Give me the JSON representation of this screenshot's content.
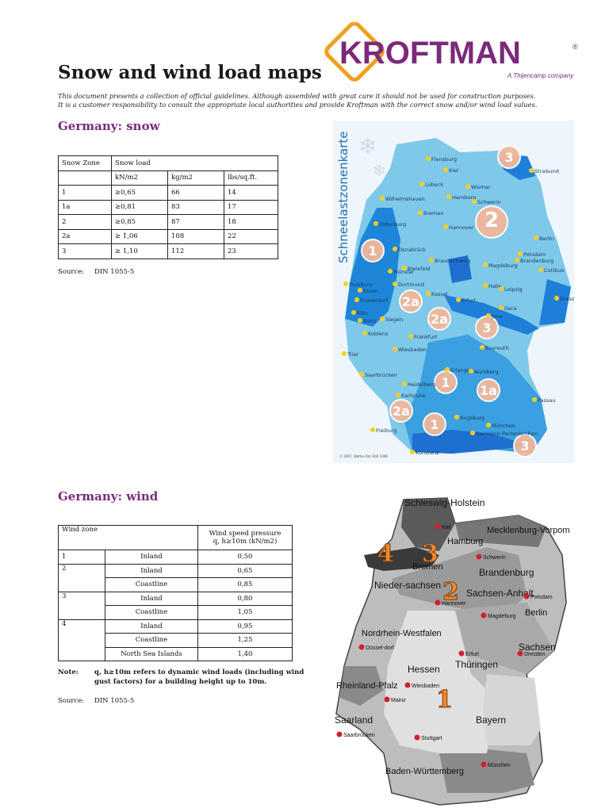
{
  "title": "Snow and wind load maps",
  "disclaimer": {
    "line1": "This document presents a collection of official guidelines.  Although assembled with great care it should not be used for construction purposes.",
    "line2": "It is a customer responsibility to consult the appropriate local authorities and provide Kroftman with the correct snow and/or wind load values."
  },
  "logo": {
    "name": "KROFTMAN",
    "registered": "®",
    "tagline": "A Thijencamp company",
    "color": "#7b2a7b",
    "accent": "#f0a020"
  },
  "snow": {
    "heading": "Germany: snow",
    "table": {
      "h1": [
        "Snow Zone",
        "Snow load"
      ],
      "h2": [
        "kN/m2",
        "kg/m2",
        "lbs/sq.ft."
      ],
      "rows": [
        [
          "1",
          "≥0,65",
          "66",
          "14"
        ],
        [
          "1a",
          "≥0,81",
          "83",
          "17"
        ],
        [
          "2",
          "≥0,85",
          "87",
          "18"
        ],
        [
          "2a",
          "≥ 1,06",
          "108",
          "22"
        ],
        [
          "3",
          "≥ 1,10",
          "112",
          "23"
        ]
      ]
    },
    "source_label": "Source:",
    "source_value": "DIN 1055-5",
    "map": {
      "vertical_title": "Schneelastzonenkarte",
      "zones": [
        "1",
        "1",
        "1",
        "1a",
        "2",
        "2a",
        "2a",
        "2a",
        "3",
        "3",
        "3"
      ],
      "cities": [
        "Flensburg",
        "Kiel",
        "Stralsund",
        "Lübeck",
        "Wismar",
        "Hamburg",
        "Schwerin",
        "Wilhelmshaven",
        "Bremen",
        "Oldenburg",
        "Berlin",
        "Hannover",
        "Potsdam",
        "Brandenburg",
        "Osnabrück",
        "Braunschweig",
        "Magdeburg",
        "Münster",
        "Bielefeld",
        "Cottbus",
        "Dortmund",
        "Halle",
        "Leipzig",
        "Duisburg",
        "Essen",
        "Kassel",
        "Düsseldorf",
        "Erfurt",
        "Dresden",
        "Köln",
        "Bonn",
        "Siegen",
        "Gera",
        "Jena",
        "Koblenz",
        "Frankfurt",
        "Wiesbaden",
        "Bayreuth",
        "Trier",
        "Saarbrücken",
        "Erlangen",
        "Nürnberg",
        "Heidelberg",
        "Karlsruhe",
        "Passau",
        "Augsburg",
        "Freiburg",
        "München",
        "Garmisch-Partenkirchen",
        "Konstanz"
      ],
      "copyright": "© 2007, Wetter-Dat GbR 1998"
    }
  },
  "wind": {
    "heading": "Germany: wind",
    "table": {
      "header_zone": "Wind zone",
      "header_pressure_1": "Wind speed pressure",
      "header_pressure_2": "q, h≥10m (kN/m2)",
      "rows": [
        {
          "zone": "1",
          "location": "Inland",
          "value": "0,50"
        },
        {
          "zone": "2",
          "location": "Inland",
          "value": "0,65"
        },
        {
          "zone": "",
          "location": "Coastline",
          "value": "0,85"
        },
        {
          "zone": "3",
          "location": "Inland",
          "value": "0,80"
        },
        {
          "zone": "",
          "location": "Coastline",
          "value": "1,05"
        },
        {
          "zone": "4",
          "location": "Inland",
          "value": "0,95"
        },
        {
          "zone": "",
          "location": "Coastline",
          "value": "1,25"
        },
        {
          "zone": "",
          "location": "North Sea Islands",
          "value": "1,40"
        }
      ]
    },
    "note_label": "Note:",
    "note_text": "q, h≥10m refers to dynamic wind loads (including wind gust factors) for a building height up to  10m.",
    "source_label": "Source:",
    "source_value": "DIN 1055-5",
    "map": {
      "zones": [
        "4",
        "3",
        "2",
        "1"
      ],
      "states": [
        "Schleswig-Holstein",
        "Mecklenburg-Vorpommern",
        "Hamburg",
        "Bremen",
        "Brandenburg",
        "Nieder-sachsen",
        "Sachsen-Anhalt",
        "Berlin",
        "Nordrhein-Westfalen",
        "Hessen",
        "Thüringen",
        "Sachsen",
        "Rheinland-Pfalz",
        "Saarland",
        "Bayern",
        "Baden-Württemberg"
      ],
      "cities": [
        "Kiel",
        "Schwerin",
        "Hannover",
        "Potsdam",
        "Magdeburg",
        "Düssel-dorf",
        "Erfurt",
        "Dresden",
        "Wiesbaden",
        "Mainz",
        "Saarbrücken",
        "Stuttgart",
        "München"
      ]
    }
  }
}
